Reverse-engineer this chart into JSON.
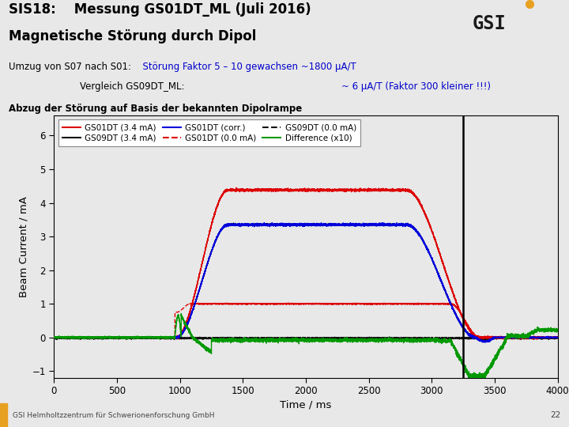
{
  "title_line1": "SIS18:    Messung GS01DT_ML (Juli 2016)",
  "title_line2": "Magnetische Störung durch Dipol",
  "subtitle_black1": "Umzug von S07 nach S01:",
  "subtitle_blue1": "  Störung Faktor 5 – 10 gewachsen ~1800 μA/T",
  "subtitle_indent": "                             Vergleich GS09DT_ML:",
  "subtitle_blue2": "        ~ 6 μA/T (Faktor 300 kleiner !!!)",
  "subtitle3": "Abzug der Störung auf Basis der bekannten Dipolrampe",
  "xlabel": "Time / ms",
  "ylabel": "Beam Current / mA",
  "xlim": [
    0,
    4000
  ],
  "ylim": [
    -1.2,
    6.6
  ],
  "xticks": [
    0,
    500,
    1000,
    1500,
    2000,
    2500,
    3000,
    3500,
    4000
  ],
  "yticks": [
    -1,
    0,
    1,
    2,
    3,
    4,
    5,
    6
  ],
  "vline_x": 3250,
  "footer_text": "GSI Helmholtzzentrum für Schwerionenforschung GmbH",
  "footer_page": "22",
  "white_bg": "#ffffff",
  "gray_bg": "#e8e8e8",
  "orange_color": "#E8A020"
}
